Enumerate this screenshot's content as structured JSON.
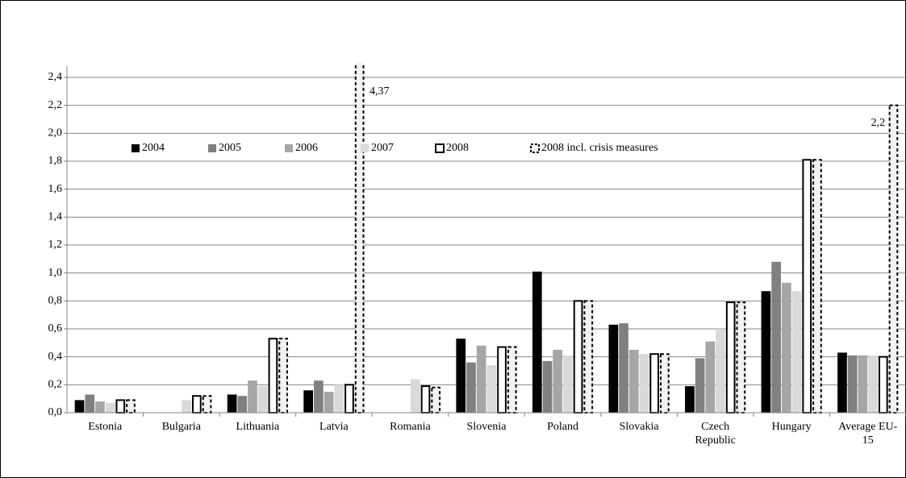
{
  "chart_data": {
    "type": "bar",
    "categories": [
      "Estonia",
      "Bulgaria",
      "Lithuania",
      "Latvia",
      "Romania",
      "Slovenia",
      "Poland",
      "Slovakia",
      "Czech Republic",
      "Hungary",
      "Average EU-15"
    ],
    "series": [
      {
        "name": "2004",
        "color": "#000000",
        "values": [
          0.09,
          null,
          0.13,
          0.16,
          null,
          0.53,
          1.01,
          0.63,
          0.19,
          0.87,
          0.43
        ]
      },
      {
        "name": "2005",
        "color": "#808080",
        "values": [
          0.13,
          null,
          0.12,
          0.23,
          null,
          0.36,
          0.37,
          0.64,
          0.39,
          1.08,
          0.41
        ]
      },
      {
        "name": "2006",
        "color": "#a6a6a6",
        "values": [
          0.08,
          null,
          0.23,
          0.15,
          null,
          0.48,
          0.45,
          0.45,
          0.51,
          0.93,
          0.41
        ]
      },
      {
        "name": "2007",
        "color": "#d9d9d9",
        "values": [
          0.07,
          0.09,
          0.19,
          0.2,
          0.24,
          0.34,
          0.41,
          0.42,
          0.6,
          0.87,
          0.41
        ]
      },
      {
        "name": "2008",
        "color": "#ffffff",
        "values": [
          0.09,
          0.12,
          0.53,
          0.2,
          0.19,
          0.47,
          0.8,
          0.42,
          0.79,
          1.81,
          0.4
        ]
      },
      {
        "name": "2008 incl. crisis measures",
        "color": "#f2f2f2",
        "values": [
          0.09,
          0.12,
          0.53,
          4.37,
          0.18,
          0.47,
          0.8,
          0.42,
          0.79,
          1.81,
          2.2
        ],
        "value_labels": [
          null,
          null,
          null,
          "4,37",
          null,
          null,
          null,
          null,
          null,
          null,
          "2,2"
        ]
      }
    ],
    "ylim": [
      0,
      2.4
    ],
    "yticks": [
      {
        "value": 0,
        "label": "0,0"
      },
      {
        "value": 0.2,
        "label": "0,2"
      },
      {
        "value": 0.4,
        "label": "0,4"
      },
      {
        "value": 0.6,
        "label": "0,6"
      },
      {
        "value": 0.8,
        "label": "0,8"
      },
      {
        "value": 1.0,
        "label": "1,0"
      },
      {
        "value": 1.2,
        "label": "1,2"
      },
      {
        "value": 1.4,
        "label": "1,4"
      },
      {
        "value": 1.6,
        "label": "1,6"
      },
      {
        "value": 1.8,
        "label": "1,8"
      },
      {
        "value": 2.0,
        "label": "2,0"
      },
      {
        "value": 2.2,
        "label": "2,2"
      },
      {
        "value": 2.4,
        "label": "2,4"
      }
    ],
    "grid": true,
    "legend": "top"
  }
}
